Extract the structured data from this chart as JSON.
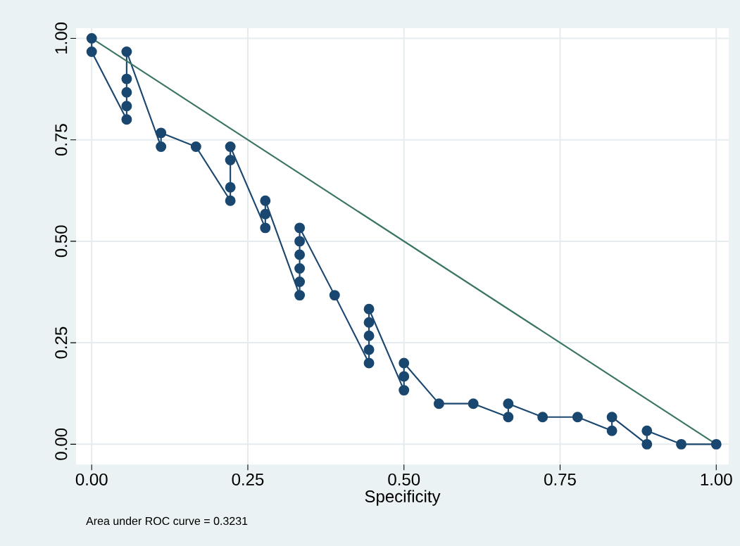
{
  "chart_data": {
    "type": "line",
    "xlabel": "Specificity",
    "annotations": [
      "Area under ROC curve = 0.3231"
    ],
    "xlim": [
      -0.025,
      1.02
    ],
    "ylim": [
      -0.05,
      1.025
    ],
    "xticks": [
      {
        "value": 0,
        "label": "0.00"
      },
      {
        "value": 0.25,
        "label": "0.25"
      },
      {
        "value": 0.5,
        "label": "0.50"
      },
      {
        "value": 0.75,
        "label": "0.75"
      },
      {
        "value": 1,
        "label": "1.00"
      }
    ],
    "yticks": [
      {
        "value": 0,
        "label": "0.00"
      },
      {
        "value": 0.25,
        "label": "0.25"
      },
      {
        "value": 0.5,
        "label": "0.50"
      },
      {
        "value": 0.75,
        "label": "0.75"
      },
      {
        "value": 1,
        "label": "1.00"
      }
    ],
    "grid": true,
    "series": [
      {
        "type": "line",
        "color": "#1a476f",
        "marker": "circle",
        "x": [
          0,
          0,
          0.056,
          0.056,
          0.056,
          0.056,
          0.056,
          0.111,
          0.111,
          0.167,
          0.222,
          0.222,
          0.222,
          0.222,
          0.278,
          0.278,
          0.278,
          0.333,
          0.333,
          0.333,
          0.333,
          0.333,
          0.333,
          0.389,
          0.444,
          0.444,
          0.444,
          0.444,
          0.444,
          0.5,
          0.5,
          0.5,
          0.556,
          0.611,
          0.667,
          0.667,
          0.722,
          0.778,
          0.833,
          0.833,
          0.889,
          0.889,
          0.944,
          1
        ],
        "values": [
          1,
          0.967,
          0.8,
          0.833,
          0.867,
          0.9,
          0.967,
          0.733,
          0.767,
          0.733,
          0.6,
          0.633,
          0.7,
          0.733,
          0.533,
          0.567,
          0.6,
          0.367,
          0.4,
          0.433,
          0.467,
          0.5,
          0.533,
          0.367,
          0.2,
          0.233,
          0.267,
          0.3,
          0.333,
          0.133,
          0.167,
          0.2,
          0.1,
          0.1,
          0.067,
          0.1,
          0.067,
          0.067,
          0.033,
          0.067,
          0,
          0.033,
          0,
          0
        ]
      },
      {
        "type": "line",
        "color": "#3a7562",
        "marker": "none",
        "x": [
          0,
          1
        ],
        "values": [
          1,
          0
        ]
      }
    ]
  }
}
